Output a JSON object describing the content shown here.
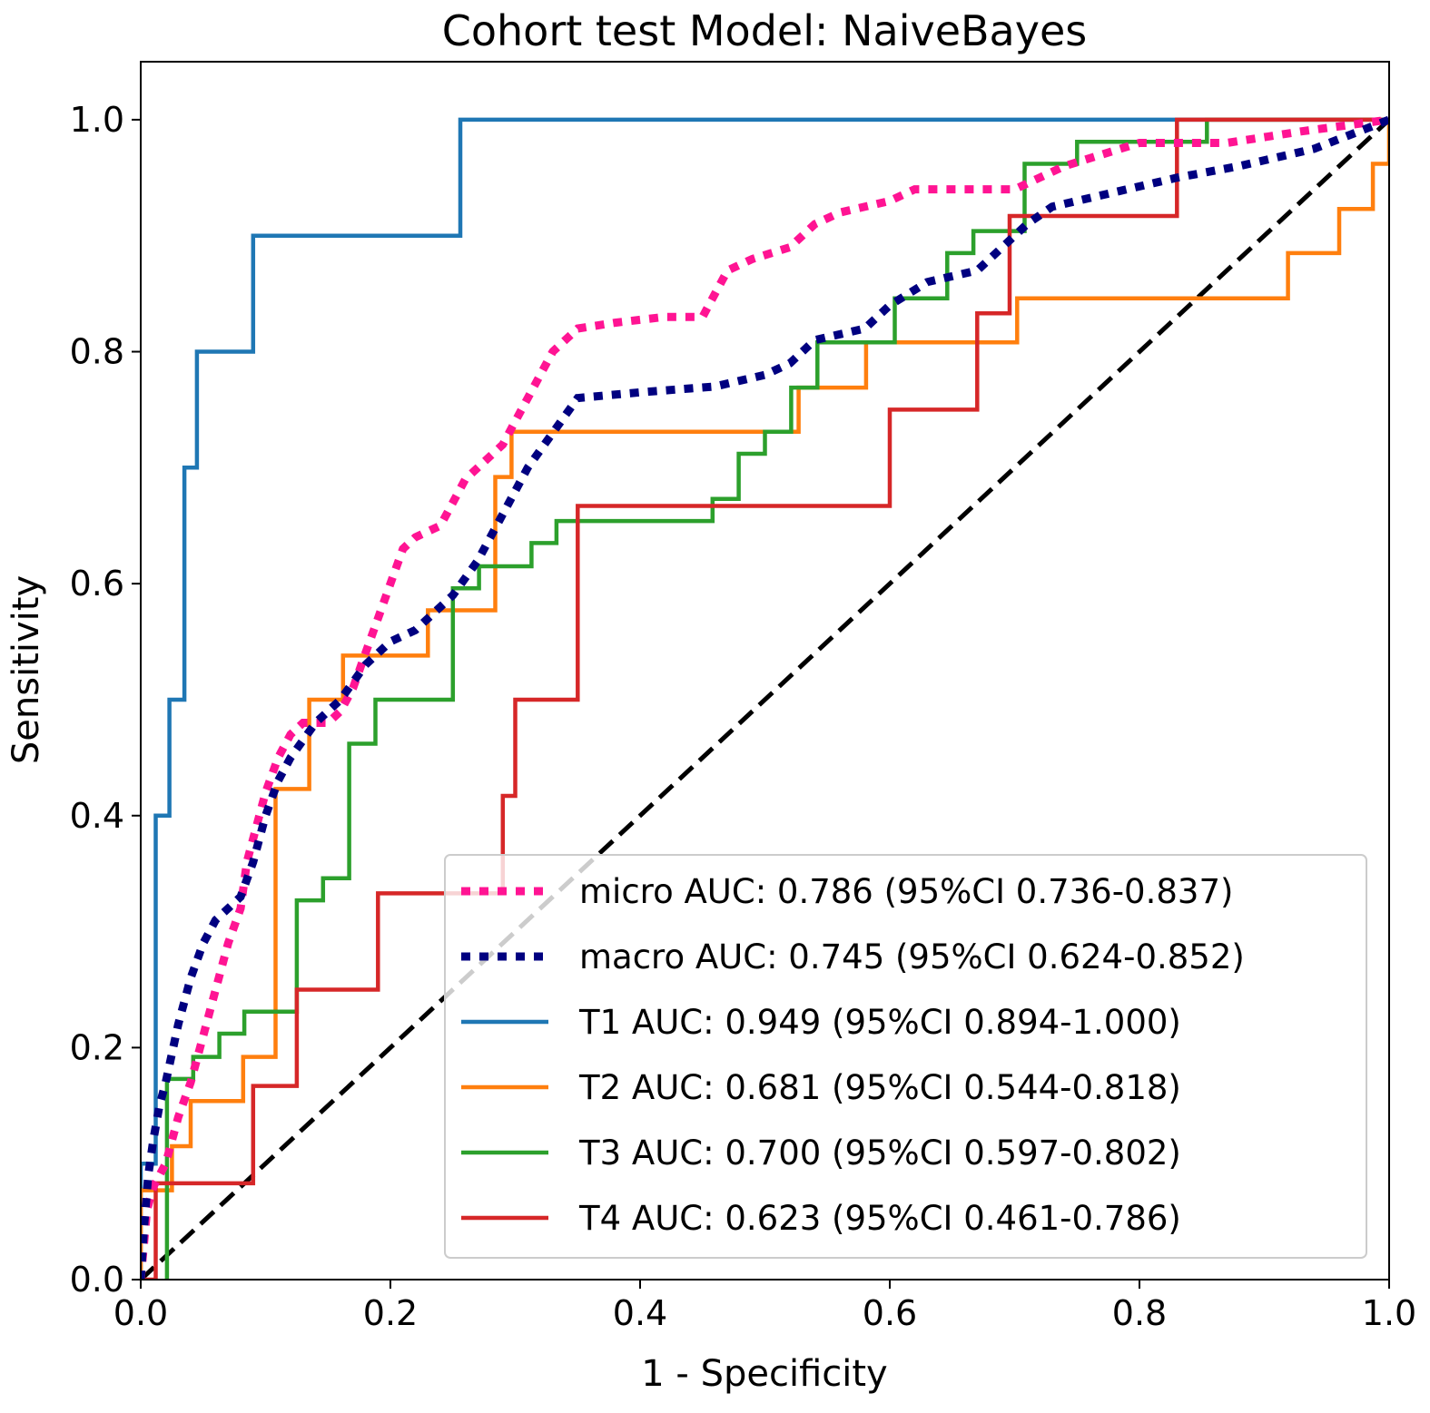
{
  "chart_data": {
    "type": "line",
    "title": "Cohort test Model: NaiveBayes",
    "xlabel": "1 - Specificity",
    "ylabel": "Sensitivity",
    "xlim": [
      0.0,
      1.0
    ],
    "ylim": [
      0.0,
      1.05
    ],
    "xticks": [
      "0.0",
      "0.2",
      "0.4",
      "0.6",
      "0.8",
      "1.0"
    ],
    "yticks": [
      "0.0",
      "0.2",
      "0.4",
      "0.6",
      "0.8",
      "1.0"
    ],
    "grid": false,
    "legend_position": "lower-right",
    "diagonal": {
      "color": "#000000",
      "style": "dashed"
    },
    "series": [
      {
        "name": "micro",
        "label": "micro AUC: 0.786 (95%CI 0.736-0.837)",
        "color": "#ff1493",
        "style": "dotted",
        "points": [
          [
            0.0,
            0.0
          ],
          [
            0.005,
            0.06
          ],
          [
            0.01,
            0.08
          ],
          [
            0.02,
            0.1
          ],
          [
            0.03,
            0.14
          ],
          [
            0.04,
            0.17
          ],
          [
            0.05,
            0.21
          ],
          [
            0.06,
            0.25
          ],
          [
            0.07,
            0.29
          ],
          [
            0.08,
            0.32
          ],
          [
            0.085,
            0.36
          ],
          [
            0.09,
            0.38
          ],
          [
            0.1,
            0.42
          ],
          [
            0.11,
            0.45
          ],
          [
            0.12,
            0.47
          ],
          [
            0.13,
            0.48
          ],
          [
            0.15,
            0.48
          ],
          [
            0.16,
            0.49
          ],
          [
            0.17,
            0.51
          ],
          [
            0.18,
            0.54
          ],
          [
            0.19,
            0.57
          ],
          [
            0.2,
            0.6
          ],
          [
            0.21,
            0.63
          ],
          [
            0.22,
            0.64
          ],
          [
            0.24,
            0.65
          ],
          [
            0.25,
            0.67
          ],
          [
            0.26,
            0.69
          ],
          [
            0.27,
            0.7
          ],
          [
            0.28,
            0.71
          ],
          [
            0.29,
            0.72
          ],
          [
            0.3,
            0.74
          ],
          [
            0.31,
            0.76
          ],
          [
            0.32,
            0.78
          ],
          [
            0.33,
            0.8
          ],
          [
            0.35,
            0.82
          ],
          [
            0.38,
            0.825
          ],
          [
            0.42,
            0.83
          ],
          [
            0.45,
            0.83
          ],
          [
            0.46,
            0.85
          ],
          [
            0.47,
            0.87
          ],
          [
            0.49,
            0.88
          ],
          [
            0.52,
            0.89
          ],
          [
            0.54,
            0.91
          ],
          [
            0.56,
            0.92
          ],
          [
            0.6,
            0.93
          ],
          [
            0.62,
            0.94
          ],
          [
            0.7,
            0.94
          ],
          [
            0.72,
            0.95
          ],
          [
            0.74,
            0.96
          ],
          [
            0.77,
            0.97
          ],
          [
            0.8,
            0.98
          ],
          [
            0.87,
            0.98
          ],
          [
            0.93,
            0.99
          ],
          [
            1.0,
            1.0
          ]
        ]
      },
      {
        "name": "macro",
        "label": "macro AUC: 0.745 (95%CI 0.624-0.852)",
        "color": "#000080",
        "style": "dotted",
        "points": [
          [
            0.0,
            0.0
          ],
          [
            0.003,
            0.05
          ],
          [
            0.006,
            0.09
          ],
          [
            0.01,
            0.12
          ],
          [
            0.015,
            0.15
          ],
          [
            0.02,
            0.17
          ],
          [
            0.03,
            0.22
          ],
          [
            0.04,
            0.26
          ],
          [
            0.05,
            0.29
          ],
          [
            0.06,
            0.31
          ],
          [
            0.08,
            0.33
          ],
          [
            0.09,
            0.36
          ],
          [
            0.1,
            0.4
          ],
          [
            0.11,
            0.43
          ],
          [
            0.12,
            0.45
          ],
          [
            0.14,
            0.48
          ],
          [
            0.16,
            0.5
          ],
          [
            0.18,
            0.53
          ],
          [
            0.2,
            0.55
          ],
          [
            0.22,
            0.56
          ],
          [
            0.25,
            0.59
          ],
          [
            0.27,
            0.62
          ],
          [
            0.29,
            0.66
          ],
          [
            0.31,
            0.7
          ],
          [
            0.33,
            0.73
          ],
          [
            0.35,
            0.76
          ],
          [
            0.4,
            0.765
          ],
          [
            0.46,
            0.77
          ],
          [
            0.5,
            0.78
          ],
          [
            0.52,
            0.79
          ],
          [
            0.54,
            0.81
          ],
          [
            0.58,
            0.82
          ],
          [
            0.6,
            0.84
          ],
          [
            0.63,
            0.86
          ],
          [
            0.67,
            0.87
          ],
          [
            0.69,
            0.89
          ],
          [
            0.71,
            0.91
          ],
          [
            0.73,
            0.925
          ],
          [
            0.77,
            0.935
          ],
          [
            0.83,
            0.95
          ],
          [
            0.88,
            0.96
          ],
          [
            0.94,
            0.975
          ],
          [
            1.0,
            1.0
          ]
        ]
      },
      {
        "name": "T1",
        "label": "T1 AUC: 0.949 (95%CI 0.894-1.000)",
        "color": "#1f77b4",
        "style": "solid",
        "points": [
          [
            0.0,
            0.0
          ],
          [
            0.0,
            0.1
          ],
          [
            0.012,
            0.1
          ],
          [
            0.012,
            0.4
          ],
          [
            0.023,
            0.4
          ],
          [
            0.023,
            0.5
          ],
          [
            0.035,
            0.5
          ],
          [
            0.035,
            0.7
          ],
          [
            0.045,
            0.7
          ],
          [
            0.045,
            0.8
          ],
          [
            0.09,
            0.8
          ],
          [
            0.09,
            0.9
          ],
          [
            0.256,
            0.9
          ],
          [
            0.256,
            1.0
          ],
          [
            1.0,
            1.0
          ]
        ]
      },
      {
        "name": "T2",
        "label": "T2 AUC: 0.681 (95%CI 0.544-0.818)",
        "color": "#ff7f0e",
        "style": "solid",
        "points": [
          [
            0.0,
            0.0
          ],
          [
            0.0,
            0.077
          ],
          [
            0.025,
            0.077
          ],
          [
            0.025,
            0.115
          ],
          [
            0.04,
            0.115
          ],
          [
            0.04,
            0.154
          ],
          [
            0.082,
            0.154
          ],
          [
            0.082,
            0.192
          ],
          [
            0.108,
            0.192
          ],
          [
            0.108,
            0.423
          ],
          [
            0.135,
            0.423
          ],
          [
            0.135,
            0.5
          ],
          [
            0.162,
            0.5
          ],
          [
            0.162,
            0.538
          ],
          [
            0.23,
            0.538
          ],
          [
            0.23,
            0.577
          ],
          [
            0.284,
            0.577
          ],
          [
            0.284,
            0.692
          ],
          [
            0.297,
            0.692
          ],
          [
            0.297,
            0.731
          ],
          [
            0.527,
            0.731
          ],
          [
            0.527,
            0.769
          ],
          [
            0.581,
            0.769
          ],
          [
            0.581,
            0.808
          ],
          [
            0.702,
            0.808
          ],
          [
            0.702,
            0.846
          ],
          [
            0.919,
            0.846
          ],
          [
            0.919,
            0.885
          ],
          [
            0.96,
            0.885
          ],
          [
            0.96,
            0.923
          ],
          [
            0.987,
            0.923
          ],
          [
            0.987,
            0.962
          ],
          [
            1.0,
            0.962
          ],
          [
            1.0,
            1.0
          ]
        ]
      },
      {
        "name": "T3",
        "label": "T3 AUC: 0.700 (95%CI 0.597-0.802)",
        "color": "#2ca02c",
        "style": "solid",
        "points": [
          [
            0.021,
            0.0
          ],
          [
            0.021,
            0.173
          ],
          [
            0.042,
            0.173
          ],
          [
            0.042,
            0.192
          ],
          [
            0.063,
            0.192
          ],
          [
            0.063,
            0.212
          ],
          [
            0.083,
            0.212
          ],
          [
            0.083,
            0.231
          ],
          [
            0.125,
            0.231
          ],
          [
            0.125,
            0.327
          ],
          [
            0.146,
            0.327
          ],
          [
            0.146,
            0.346
          ],
          [
            0.167,
            0.346
          ],
          [
            0.167,
            0.462
          ],
          [
            0.188,
            0.462
          ],
          [
            0.188,
            0.5
          ],
          [
            0.25,
            0.5
          ],
          [
            0.25,
            0.596
          ],
          [
            0.271,
            0.596
          ],
          [
            0.271,
            0.615
          ],
          [
            0.313,
            0.615
          ],
          [
            0.313,
            0.635
          ],
          [
            0.333,
            0.635
          ],
          [
            0.333,
            0.654
          ],
          [
            0.458,
            0.654
          ],
          [
            0.458,
            0.673
          ],
          [
            0.479,
            0.673
          ],
          [
            0.479,
            0.712
          ],
          [
            0.5,
            0.712
          ],
          [
            0.5,
            0.731
          ],
          [
            0.521,
            0.731
          ],
          [
            0.521,
            0.769
          ],
          [
            0.542,
            0.769
          ],
          [
            0.542,
            0.808
          ],
          [
            0.604,
            0.808
          ],
          [
            0.604,
            0.846
          ],
          [
            0.646,
            0.846
          ],
          [
            0.646,
            0.885
          ],
          [
            0.667,
            0.885
          ],
          [
            0.667,
            0.904
          ],
          [
            0.708,
            0.904
          ],
          [
            0.708,
            0.962
          ],
          [
            0.75,
            0.962
          ],
          [
            0.75,
            0.981
          ],
          [
            0.854,
            0.981
          ],
          [
            0.854,
            1.0
          ],
          [
            1.0,
            1.0
          ]
        ]
      },
      {
        "name": "T4",
        "label": "T4 AUC: 0.623 (95%CI 0.461-0.786)",
        "color": "#d62728",
        "style": "solid",
        "points": [
          [
            0.0,
            0.0
          ],
          [
            0.012,
            0.0
          ],
          [
            0.012,
            0.083
          ],
          [
            0.09,
            0.083
          ],
          [
            0.09,
            0.167
          ],
          [
            0.125,
            0.167
          ],
          [
            0.125,
            0.25
          ],
          [
            0.19,
            0.25
          ],
          [
            0.19,
            0.333
          ],
          [
            0.29,
            0.333
          ],
          [
            0.29,
            0.417
          ],
          [
            0.3,
            0.417
          ],
          [
            0.3,
            0.5
          ],
          [
            0.35,
            0.5
          ],
          [
            0.35,
            0.667
          ],
          [
            0.6,
            0.667
          ],
          [
            0.6,
            0.75
          ],
          [
            0.67,
            0.75
          ],
          [
            0.67,
            0.833
          ],
          [
            0.696,
            0.833
          ],
          [
            0.696,
            0.917
          ],
          [
            0.83,
            0.917
          ],
          [
            0.83,
            1.0
          ],
          [
            1.0,
            1.0
          ]
        ]
      }
    ]
  }
}
